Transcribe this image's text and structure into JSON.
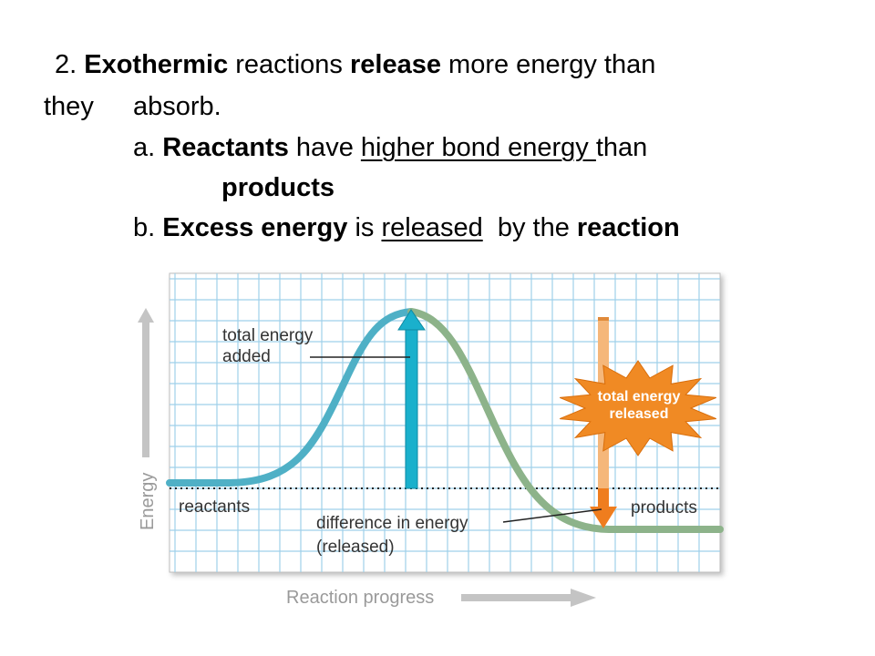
{
  "slide": {
    "line1": {
      "pre": "2. ",
      "b1": "Exothermic",
      "t1": " reactions ",
      "b2": "release",
      "t2": " more energy than"
    },
    "line2": {
      "t1": "they",
      "t2": "absorb."
    },
    "line3": {
      "pre": "a. ",
      "b1": "Reactants",
      "t1": " have ",
      "u1": "higher bond energy ",
      "t2": "than"
    },
    "line4": {
      "b1": "products"
    },
    "line5": {
      "pre": "b. ",
      "b1": "Excess energy",
      "t1": " is ",
      "u1": "released",
      "t2": "  by the ",
      "b2": "reaction"
    }
  },
  "diagram": {
    "y_axis_label": "Energy",
    "x_axis_label": "Reaction progress",
    "label_total_energy_added": [
      "total energy",
      "added"
    ],
    "label_total_energy_released": [
      "total energy",
      "released"
    ],
    "label_reactants": "reactants",
    "label_products": "products",
    "label_difference": [
      "difference in energy",
      "(released)"
    ],
    "colors": {
      "grid": "#9fd0ea",
      "rising_curve": "#4fb0c6",
      "falling_curve": "#8db38a",
      "up_arrow": "#1ab0cc",
      "down_arrow": "#f39a38",
      "burst": "#f08a24",
      "axis_arrow": "#c4c4c4"
    }
  }
}
